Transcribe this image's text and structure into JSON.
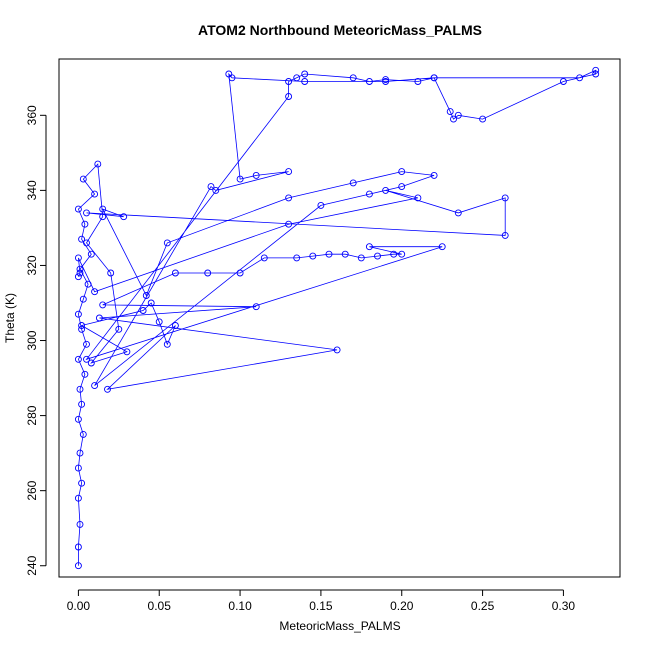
{
  "chart_data": {
    "type": "scatter",
    "title": "ATOM2 Northbound MeteoricMass_PALMS",
    "xlabel": "MeteoricMass_PALMS",
    "ylabel": "Theta (K)",
    "xlim": [
      -0.012,
      0.335
    ],
    "ylim": [
      237,
      375
    ],
    "xticks": [
      0.0,
      0.05,
      0.1,
      0.15,
      0.2,
      0.25,
      0.3
    ],
    "xtick_labels": [
      "0.00",
      "0.05",
      "0.10",
      "0.15",
      "0.20",
      "0.25",
      "0.30"
    ],
    "yticks": [
      240,
      260,
      280,
      300,
      320,
      340,
      360
    ],
    "ytick_labels": [
      "240",
      "260",
      "280",
      "300",
      "320",
      "340",
      "360"
    ],
    "grid": false,
    "color": "#0000ff",
    "markers": "open-circle",
    "connected": true,
    "series": [
      {
        "x": [
          0.0,
          0.0,
          0.001,
          0.0,
          0.002,
          0.0,
          0.001,
          0.003,
          0.0,
          0.002,
          0.001,
          0.004,
          0.0,
          0.005,
          0.002,
          0.0,
          0.003,
          0.006,
          0.001,
          0.008,
          0.002,
          0.004,
          0.0,
          0.01,
          0.003,
          0.012,
          0.015,
          0.005,
          0.02,
          0.025,
          0.008,
          0.03,
          0.002,
          0.04,
          0.045,
          0.05,
          0.055,
          0.06,
          0.018,
          0.16,
          0.013,
          0.11,
          0.015,
          0.06,
          0.08,
          0.1,
          0.115,
          0.135,
          0.145,
          0.155,
          0.165,
          0.175,
          0.185,
          0.195,
          0.2,
          0.18,
          0.225,
          0.005,
          0.13,
          0.13,
          0.135,
          0.14,
          0.17,
          0.18,
          0.19,
          0.21,
          0.22,
          0.23,
          0.232,
          0.235,
          0.25,
          0.3,
          0.32,
          0.32,
          0.31,
          0.22,
          0.19,
          0.14,
          0.095,
          0.093,
          0.1,
          0.11,
          0.13,
          0.085,
          0.082,
          0.01,
          0.15,
          0.18,
          0.2,
          0.22,
          0.2,
          0.17,
          0.13,
          0.055,
          0.042,
          0.015,
          0.028,
          0.005,
          0.264,
          0.264,
          0.235,
          0.19,
          0.21,
          0.13,
          0.01,
          0.0,
          0.001,
          0.0
        ],
        "y": [
          240,
          245,
          251,
          258,
          262,
          266,
          270,
          275,
          279,
          283,
          287,
          291,
          295,
          299,
          303,
          307,
          311,
          315,
          319,
          323,
          327,
          331,
          335,
          339,
          343,
          347,
          333,
          326,
          318,
          303,
          294,
          297,
          304,
          308,
          310,
          305,
          299,
          304,
          287,
          297.5,
          306,
          309,
          309.5,
          318,
          318,
          318,
          322,
          322,
          322.5,
          323,
          323,
          322,
          322.5,
          323,
          323,
          325,
          325,
          295,
          365,
          369,
          370,
          371,
          370,
          369,
          369.5,
          369,
          370,
          361,
          359,
          360,
          359,
          369,
          371,
          372,
          370,
          370,
          369,
          369,
          370,
          371,
          343,
          344,
          345,
          340,
          341,
          288,
          336,
          339,
          341,
          344,
          345,
          342,
          338,
          326,
          312,
          335,
          333,
          334,
          328,
          338,
          334,
          340,
          338,
          331,
          313,
          322,
          318,
          317
        ]
      }
    ]
  }
}
